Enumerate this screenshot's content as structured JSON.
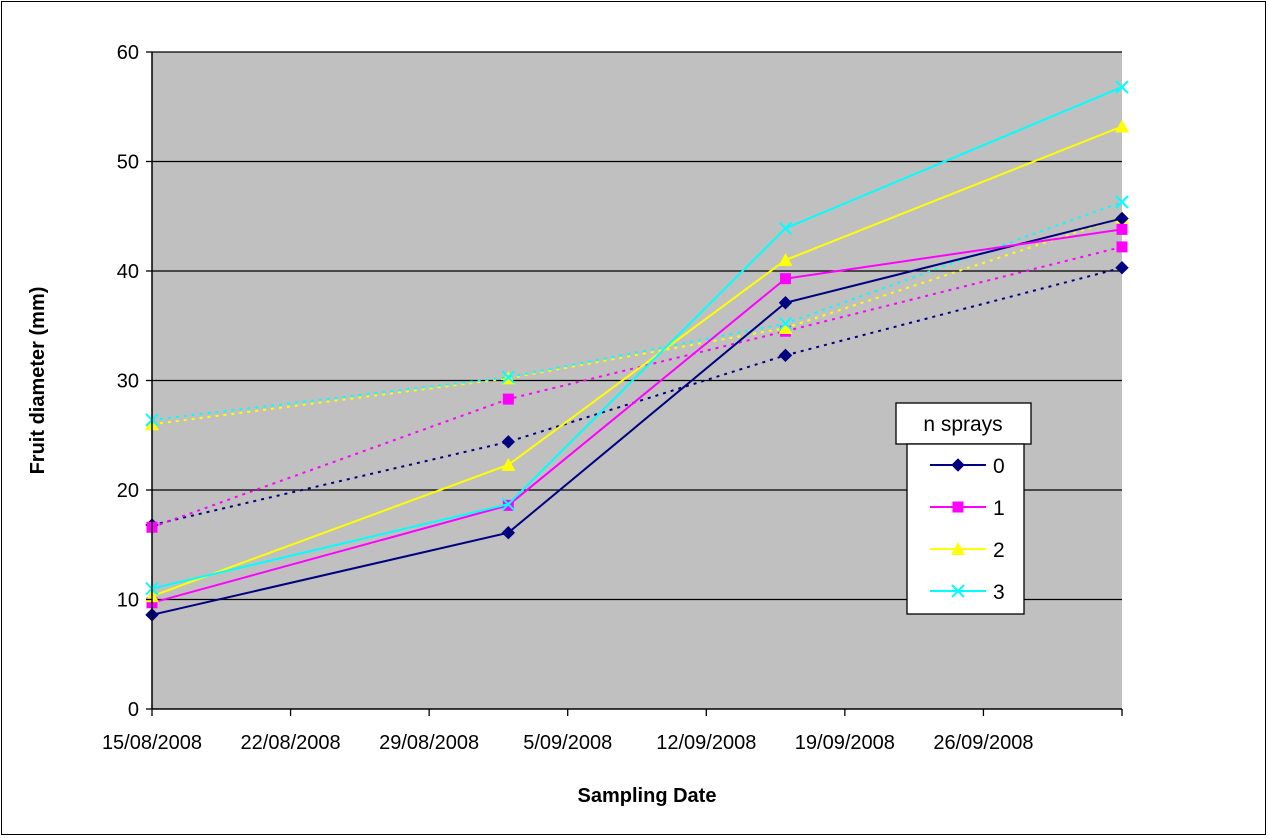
{
  "chart_data": {
    "type": "line",
    "xlabel": "Sampling Date",
    "ylabel": "Fruit diameter (mm)",
    "ylim": [
      0,
      60
    ],
    "yticks": [
      0,
      10,
      20,
      30,
      40,
      50,
      60
    ],
    "xticks": [
      "15/08/2008",
      "22/08/2008",
      "29/08/2008",
      "5/09/2008",
      "12/09/2008",
      "19/09/2008",
      "26/09/2008"
    ],
    "xlim": [
      "15/08/2008",
      "03/10/2008"
    ],
    "x": [
      "15/08/2008",
      "02/09/2008",
      "16/09/2008",
      "03/10/2008"
    ],
    "grid": "horizontal",
    "plot_background": "#c0c0c0",
    "legend": {
      "title": "n sprays",
      "placement": "right"
    },
    "series": [
      {
        "name": "0",
        "color": "#000080",
        "marker": "diamond",
        "style": "solid",
        "values": [
          8.6,
          16.1,
          37.1,
          44.8
        ]
      },
      {
        "name": "1",
        "color": "#ff00ff",
        "marker": "square",
        "style": "solid",
        "values": [
          9.7,
          18.6,
          39.3,
          43.8
        ]
      },
      {
        "name": "2",
        "color": "#ffff00",
        "marker": "triangle",
        "style": "solid",
        "values": [
          10.3,
          22.3,
          41.0,
          53.2
        ]
      },
      {
        "name": "3",
        "color": "#00ffff",
        "marker": "x",
        "style": "solid",
        "values": [
          11.0,
          18.7,
          43.9,
          56.8
        ]
      }
    ],
    "trendlines": [
      {
        "color": "#000080",
        "style": "dotted",
        "values": [
          16.8,
          24.4,
          32.3,
          40.3
        ]
      },
      {
        "color": "#ff00ff",
        "style": "dotted",
        "values": [
          16.6,
          28.3,
          34.5,
          42.2
        ]
      },
      {
        "color": "#ffff00",
        "style": "dotted",
        "values": [
          26.0,
          30.2,
          34.8,
          44.9
        ]
      },
      {
        "color": "#00ffff",
        "style": "dotted",
        "values": [
          26.4,
          30.3,
          35.2,
          46.3
        ]
      }
    ]
  }
}
